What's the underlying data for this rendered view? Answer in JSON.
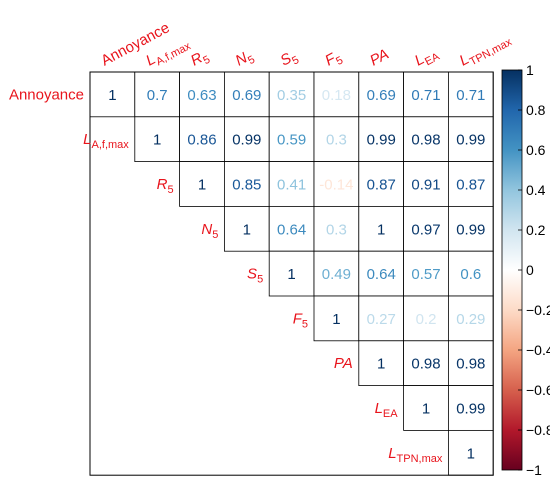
{
  "chart_data": {
    "type": "heatmap",
    "subtype": "upper-triangular correlation matrix",
    "variables": [
      {
        "base": "Annoyance",
        "sub": "",
        "italic": false
      },
      {
        "base": "L",
        "sub": "A,f,max",
        "italic": true
      },
      {
        "base": "R",
        "sub": "5",
        "italic": true
      },
      {
        "base": "N",
        "sub": "5",
        "italic": true
      },
      {
        "base": "S",
        "sub": "5",
        "italic": true
      },
      {
        "base": "F",
        "sub": "5",
        "italic": true
      },
      {
        "base": "PA",
        "sub": "",
        "italic": true
      },
      {
        "base": "L",
        "sub": "EA",
        "italic": true
      },
      {
        "base": "L",
        "sub": "TPN,max",
        "italic": true
      }
    ],
    "matrix": [
      [
        1,
        0.7,
        0.63,
        0.69,
        0.35,
        0.18,
        0.69,
        0.71,
        0.71
      ],
      [
        null,
        1,
        0.86,
        0.99,
        0.59,
        0.3,
        0.99,
        0.98,
        0.99
      ],
      [
        null,
        null,
        1,
        0.85,
        0.41,
        -0.14,
        0.87,
        0.91,
        0.87
      ],
      [
        null,
        null,
        null,
        1,
        0.64,
        0.3,
        1,
        0.97,
        0.99
      ],
      [
        null,
        null,
        null,
        null,
        1,
        0.49,
        0.64,
        0.57,
        0.6
      ],
      [
        null,
        null,
        null,
        null,
        null,
        1,
        0.27,
        0.2,
        0.29
      ],
      [
        null,
        null,
        null,
        null,
        null,
        null,
        1,
        0.98,
        0.98
      ],
      [
        null,
        null,
        null,
        null,
        null,
        null,
        null,
        1,
        0.99
      ],
      [
        null,
        null,
        null,
        null,
        null,
        null,
        null,
        null,
        1
      ]
    ],
    "color_scale": {
      "range": [
        -1,
        1
      ],
      "ticks": [
        -1,
        -0.8,
        -0.6,
        -0.4,
        -0.2,
        0,
        0.2,
        0.4,
        0.6,
        0.8,
        1
      ],
      "tick_labels": [
        "−1",
        "−0.8",
        "−0.6",
        "−0.4",
        "−0.2",
        "0",
        "0.2",
        "0.4",
        "0.6",
        "0.8",
        "1"
      ],
      "stops": [
        "#67001F",
        "#B2182B",
        "#D6604D",
        "#F4A582",
        "#FDDBC7",
        "#FFFFFF",
        "#D1E5F0",
        "#92C5DE",
        "#4393C3",
        "#2166AC",
        "#053061"
      ]
    },
    "label_color": "#E8141C",
    "grid_color": "#000000"
  }
}
